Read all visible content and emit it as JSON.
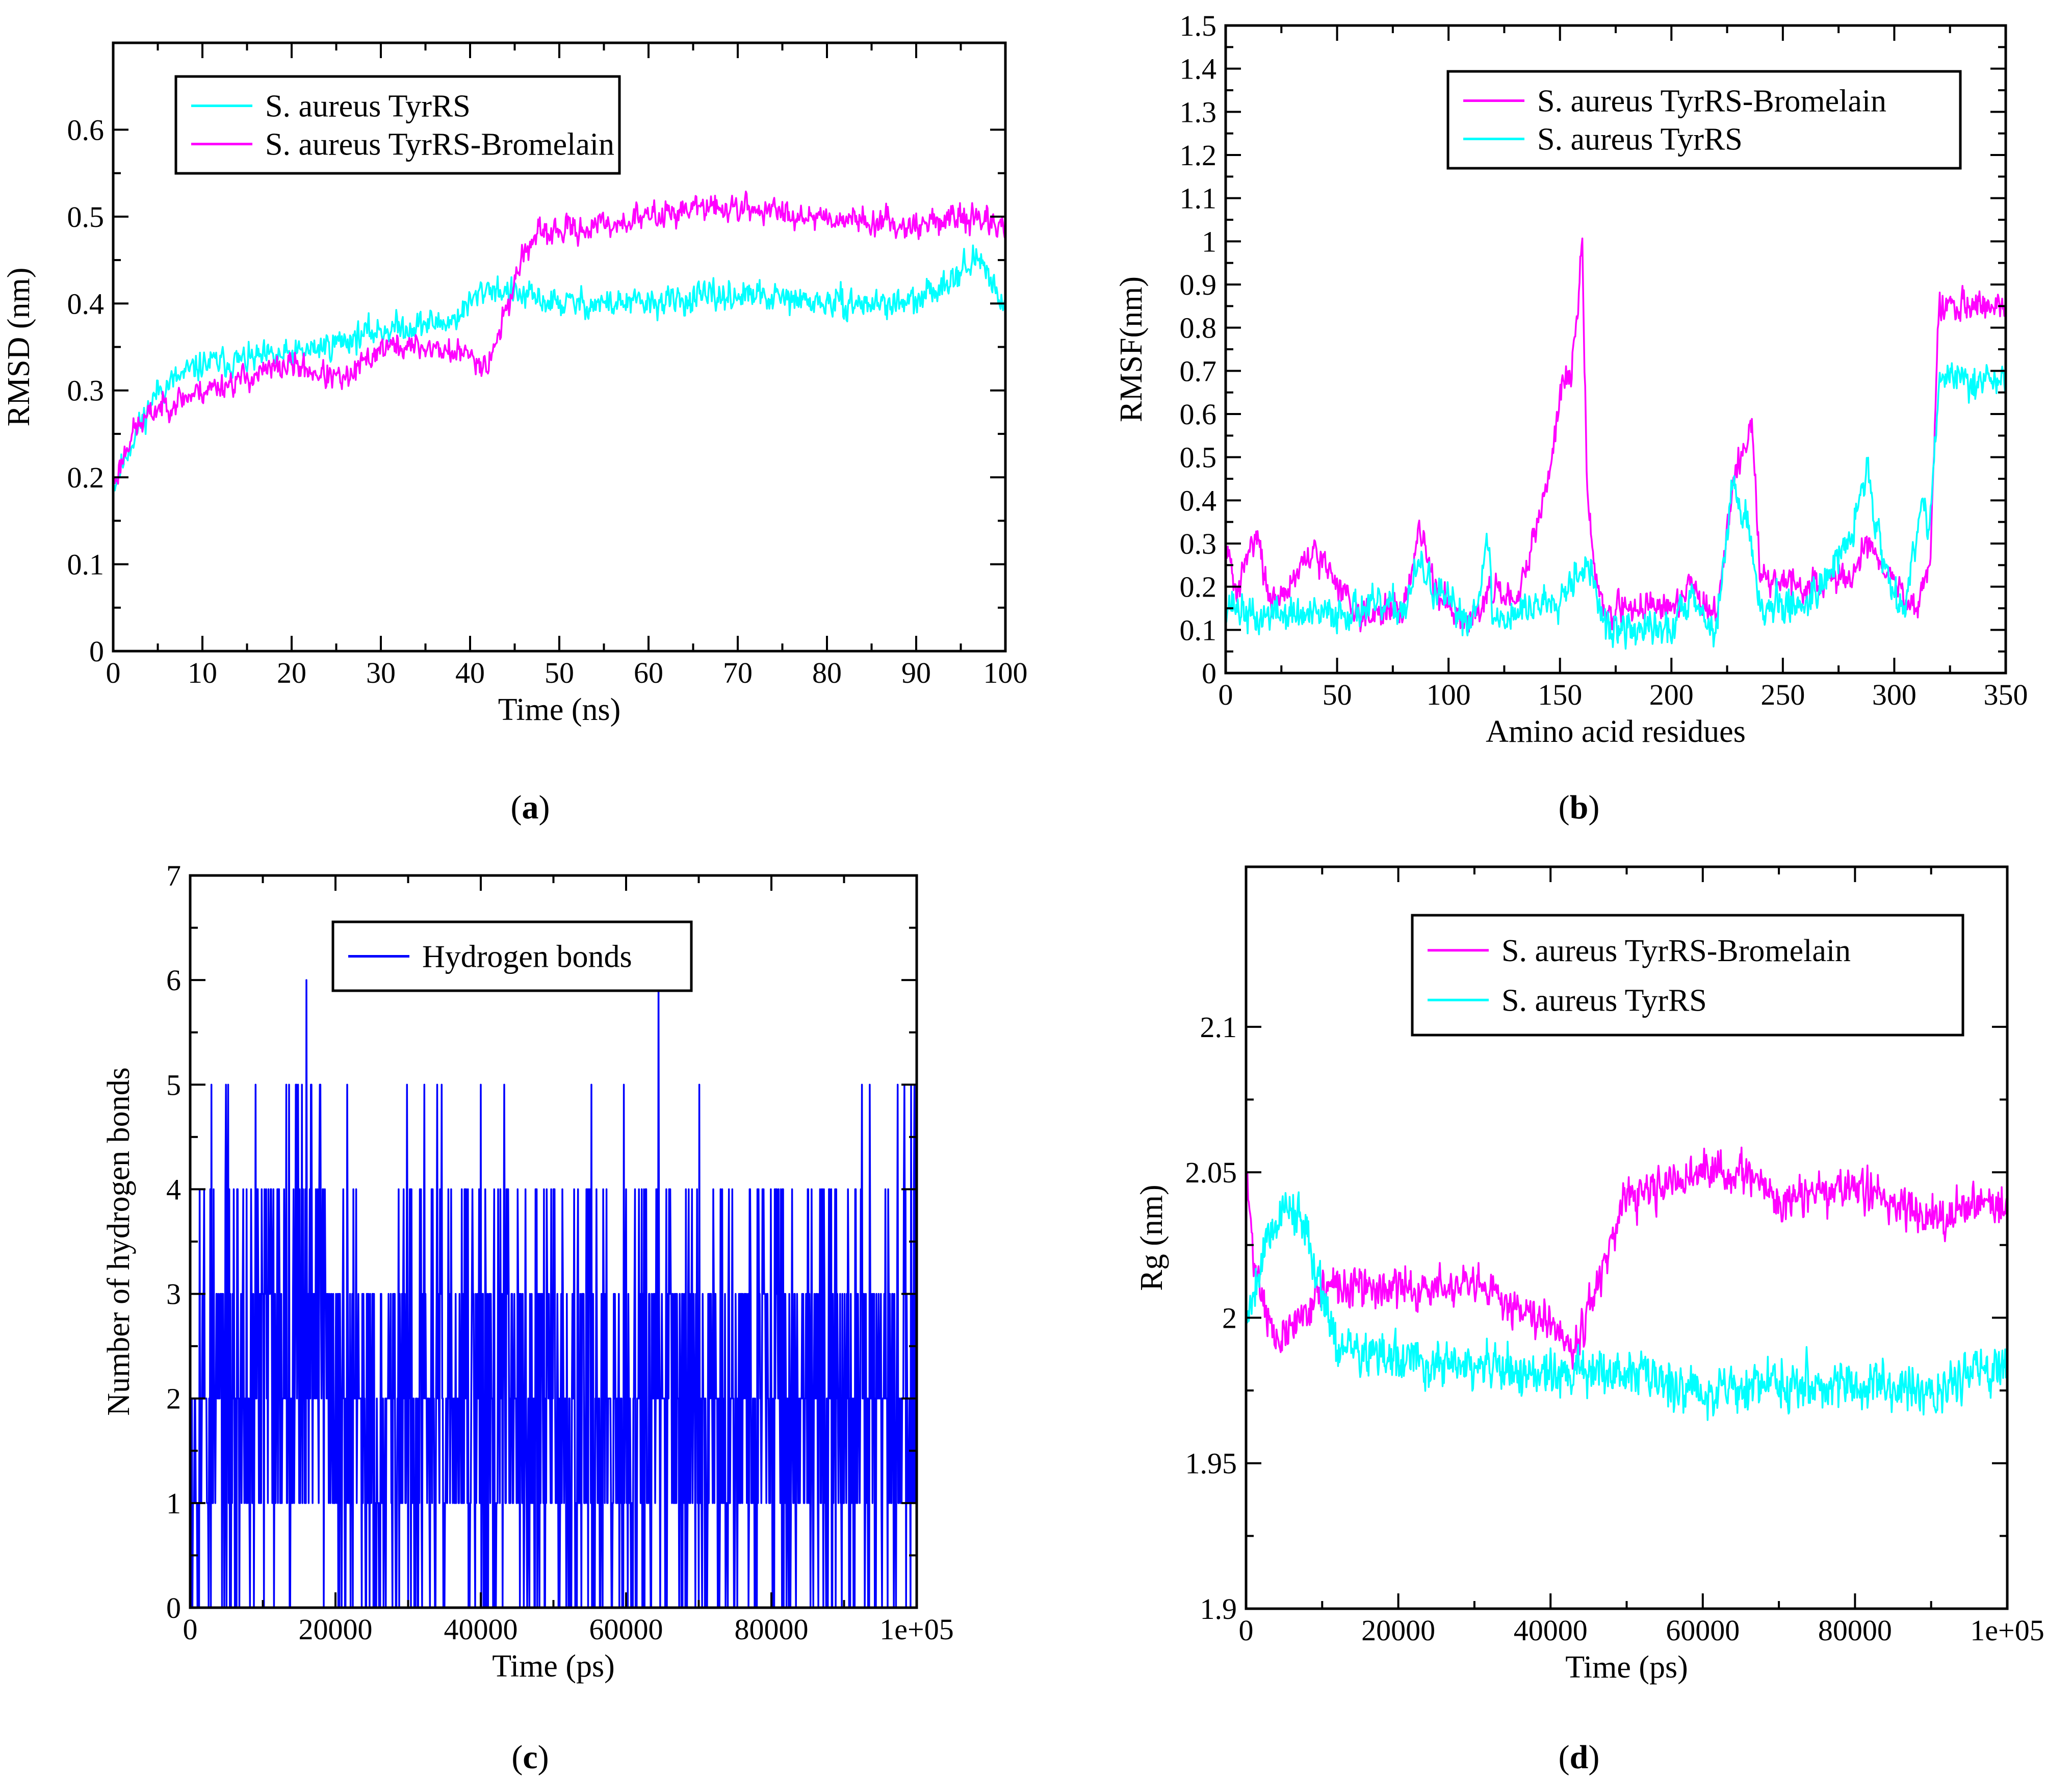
{
  "colors": {
    "cyan": "#00ffff",
    "magenta": "#ff00ff",
    "blue": "#0000ff",
    "axis": "#000000"
  },
  "chart_data": [
    {
      "id": "a",
      "type": "line",
      "caption": "a",
      "xlabel": "Time (ns)",
      "ylabel": "RMSD (nm)",
      "xlim": [
        0,
        100
      ],
      "ylim": [
        0,
        0.7
      ],
      "xticks": [
        0,
        10,
        20,
        30,
        40,
        50,
        60,
        70,
        80,
        90,
        100
      ],
      "xtick_labels": [
        "0",
        "10",
        "20",
        "30",
        "40",
        "50",
        "60",
        "70",
        "80",
        "90",
        "100"
      ],
      "yticks": [
        0,
        0.1,
        0.2,
        0.3,
        0.4,
        0.5,
        0.6
      ],
      "ytick_labels": [
        "0",
        "0.1",
        "0.2",
        "0.3",
        "0.4",
        "0.5",
        "0.6"
      ],
      "legend": [
        "S. aureus TyrRS",
        "S. aureus TyrRS-Bromelain"
      ],
      "legend_position": "top-left",
      "series": [
        {
          "name": "S. aureus TyrRS",
          "color": "#00ffff",
          "noise": 0.012,
          "seed": 11,
          "x": [
            0,
            2,
            5,
            10,
            20,
            30,
            38,
            42,
            45,
            50,
            60,
            70,
            80,
            90,
            95,
            97,
            100
          ],
          "y": [
            0.19,
            0.24,
            0.3,
            0.33,
            0.34,
            0.37,
            0.38,
            0.42,
            0.41,
            0.4,
            0.4,
            0.41,
            0.4,
            0.4,
            0.44,
            0.45,
            0.4
          ]
        },
        {
          "name": "S. aureus TyrRS-Bromelain",
          "color": "#ff00ff",
          "noise": 0.011,
          "seed": 23,
          "x": [
            0,
            2,
            5,
            10,
            20,
            26,
            30,
            35,
            40,
            42,
            44,
            46,
            48,
            55,
            60,
            65,
            70,
            80,
            90,
            95,
            100
          ],
          "y": [
            0.19,
            0.25,
            0.28,
            0.3,
            0.33,
            0.31,
            0.35,
            0.35,
            0.34,
            0.33,
            0.39,
            0.46,
            0.48,
            0.49,
            0.5,
            0.51,
            0.51,
            0.5,
            0.49,
            0.5,
            0.49
          ]
        }
      ]
    },
    {
      "id": "b",
      "type": "line",
      "caption": "b",
      "xlabel": "Amino acid residues",
      "ylabel": "RMSF(nm)",
      "xlim": [
        0,
        350
      ],
      "ylim": [
        0,
        1.5
      ],
      "xticks": [
        0,
        50,
        100,
        150,
        200,
        250,
        300,
        350
      ],
      "xtick_labels": [
        "0",
        "50",
        "100",
        "150",
        "200",
        "250",
        "300",
        "350"
      ],
      "yticks": [
        0,
        0.1,
        0.2,
        0.3,
        0.4,
        0.5,
        0.6,
        0.7,
        0.8,
        0.9,
        1,
        1.1,
        1.2,
        1.3,
        1.4,
        1.5
      ],
      "ytick_labels": [
        "0",
        "0.1",
        "0.2",
        "0.3",
        "0.4",
        "0.5",
        "0.6",
        "0.7",
        "0.8",
        "0.9",
        "1",
        "1.1",
        "1.2",
        "1.3",
        "1.4",
        "1.5"
      ],
      "legend": [
        "S. aureus TyrRS-Bromelain",
        "S. aureus TyrRS"
      ],
      "legend_position": "top-right",
      "series": [
        {
          "name": "S. aureus TyrRS-Bromelain",
          "color": "#ff00ff",
          "noise": 0.025,
          "seed": 31,
          "x": [
            0,
            5,
            14,
            20,
            40,
            60,
            80,
            87,
            95,
            110,
            118,
            130,
            140,
            145,
            150,
            155,
            158,
            160,
            162,
            165,
            170,
            190,
            200,
            210,
            215,
            220,
            228,
            236,
            240,
            260,
            280,
            288,
            295,
            310,
            316,
            320
          ],
          "y": [
            0.3,
            0.18,
            0.34,
            0.15,
            0.28,
            0.14,
            0.15,
            0.33,
            0.18,
            0.12,
            0.2,
            0.15,
            0.35,
            0.45,
            0.65,
            0.7,
            0.85,
            1.01,
            0.45,
            0.25,
            0.14,
            0.16,
            0.14,
            0.22,
            0.14,
            0.13,
            0.45,
            0.57,
            0.22,
            0.2,
            0.22,
            0.3,
            0.25,
            0.14,
            0.25,
            0.85
          ]
        },
        {
          "name": "S. aureus TyrRS",
          "color": "#00ffff",
          "noise": 0.03,
          "seed": 37,
          "x": [
            0,
            14,
            20,
            40,
            60,
            80,
            87,
            95,
            110,
            118,
            120,
            140,
            150,
            155,
            160,
            165,
            170,
            200,
            210,
            215,
            220,
            228,
            236,
            240,
            260,
            280,
            288,
            295,
            305,
            312,
            316,
            320
          ],
          "y": [
            0.17,
            0.12,
            0.14,
            0.13,
            0.15,
            0.15,
            0.25,
            0.18,
            0.12,
            0.3,
            0.12,
            0.16,
            0.18,
            0.22,
            0.25,
            0.22,
            0.1,
            0.1,
            0.2,
            0.12,
            0.1,
            0.45,
            0.3,
            0.15,
            0.16,
            0.3,
            0.48,
            0.25,
            0.15,
            0.4,
            0.35,
            0.68
          ]
        }
      ]
    },
    {
      "id": "c",
      "type": "line",
      "caption": "c",
      "xlabel": "Time (ps)",
      "ylabel": "Number of hydrogen bonds",
      "xlim": [
        0,
        100000
      ],
      "ylim": [
        0,
        7
      ],
      "xticks": [
        0,
        20000,
        40000,
        60000,
        80000,
        100000
      ],
      "xtick_labels": [
        "0",
        "20000",
        "40000",
        "60000",
        "80000",
        "1e+05"
      ],
      "yticks": [
        0,
        1,
        2,
        3,
        4,
        5,
        6,
        7
      ],
      "ytick_labels": [
        "0",
        "1",
        "2",
        "3",
        "4",
        "5",
        "6",
        "7"
      ],
      "legend": [
        "Hydrogen bonds"
      ],
      "legend_position": "top-left",
      "series": [
        {
          "name": "Hydrogen bonds",
          "color": "#0000ff",
          "seed": 53,
          "integer": true,
          "min": 0,
          "max": 7,
          "x": [
            0,
            10000,
            15000,
            18000,
            20000,
            25000,
            40000,
            60000,
            70000,
            80000,
            90000,
            100000
          ],
          "y": [
            1.8,
            2.2,
            3.0,
            3.2,
            1.6,
            1.8,
            1.9,
            2.0,
            2.1,
            2.0,
            1.9,
            1.9
          ]
        }
      ]
    },
    {
      "id": "d",
      "type": "line",
      "caption": "d",
      "xlabel": "Time (ps)",
      "ylabel": "Rg (nm)",
      "xlim": [
        0,
        100000
      ],
      "ylim": [
        1.9,
        2.155
      ],
      "xticks": [
        0,
        20000,
        40000,
        60000,
        80000,
        100000
      ],
      "xtick_labels": [
        "0",
        "20000",
        "40000",
        "60000",
        "80000",
        "1e+05"
      ],
      "yticks": [
        1.9,
        1.95,
        2,
        2.05,
        2.1
      ],
      "ytick_labels": [
        "1.9",
        "1.95",
        "2",
        "2.05",
        "2.1"
      ],
      "legend": [
        "S. aureus TyrRS-Bromelain",
        "S. aureus TyrRS"
      ],
      "legend_position": "top-right",
      "series": [
        {
          "name": "S. aureus TyrRS-Bromelain",
          "color": "#ff00ff",
          "noise": 0.005,
          "seed": 71,
          "x": [
            0,
            1000,
            4000,
            10000,
            20000,
            25000,
            30000,
            40000,
            43000,
            46000,
            50000,
            60000,
            65000,
            70000,
            80000,
            90000,
            100000
          ],
          "y": [
            2.05,
            2.02,
            1.99,
            2.01,
            2.01,
            2.01,
            2.01,
            2.0,
            1.99,
            2.01,
            2.04,
            2.05,
            2.05,
            2.04,
            2.045,
            2.035,
            2.04
          ]
        },
        {
          "name": "S. aureus TyrRS",
          "color": "#00ffff",
          "noise": 0.006,
          "seed": 79,
          "x": [
            0,
            3000,
            6000,
            9000,
            12000,
            20000,
            30000,
            40000,
            50000,
            60000,
            70000,
            80000,
            90000,
            100000
          ],
          "y": [
            2.0,
            2.03,
            2.04,
            2.02,
            1.99,
            1.985,
            1.983,
            1.98,
            1.982,
            1.975,
            1.978,
            1.977,
            1.975,
            1.985
          ]
        }
      ]
    }
  ]
}
